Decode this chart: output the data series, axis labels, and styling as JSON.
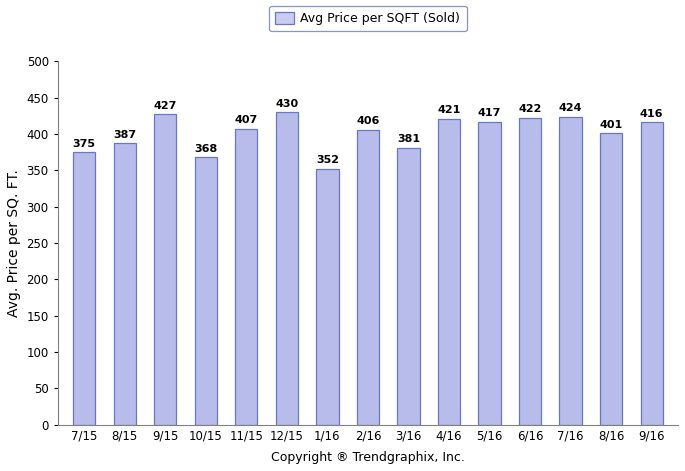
{
  "categories": [
    "7/15",
    "8/15",
    "9/15",
    "10/15",
    "11/15",
    "12/15",
    "1/16",
    "2/16",
    "3/16",
    "4/16",
    "5/16",
    "6/16",
    "7/16",
    "8/16",
    "9/16"
  ],
  "values": [
    375,
    387,
    427,
    368,
    407,
    430,
    352,
    406,
    381,
    421,
    417,
    422,
    424,
    401,
    416
  ],
  "bar_color": "#b8bceb",
  "bar_edgecolor": "#6878c0",
  "ylim": [
    0,
    500
  ],
  "yticks": [
    0,
    50,
    100,
    150,
    200,
    250,
    300,
    350,
    400,
    450,
    500
  ],
  "ylabel": "Avg. Price per SQ. FT.",
  "xlabel": "Copyright ® Trendgraphix, Inc.",
  "legend_label": "Avg Price per SQFT (Sold)",
  "legend_facecolor": "#c8ccf0",
  "legend_edgecolor": "#6878c0",
  "label_fontsize": 8,
  "ylabel_fontsize": 10,
  "xlabel_fontsize": 9,
  "tick_fontsize": 8.5,
  "bar_width": 0.55
}
